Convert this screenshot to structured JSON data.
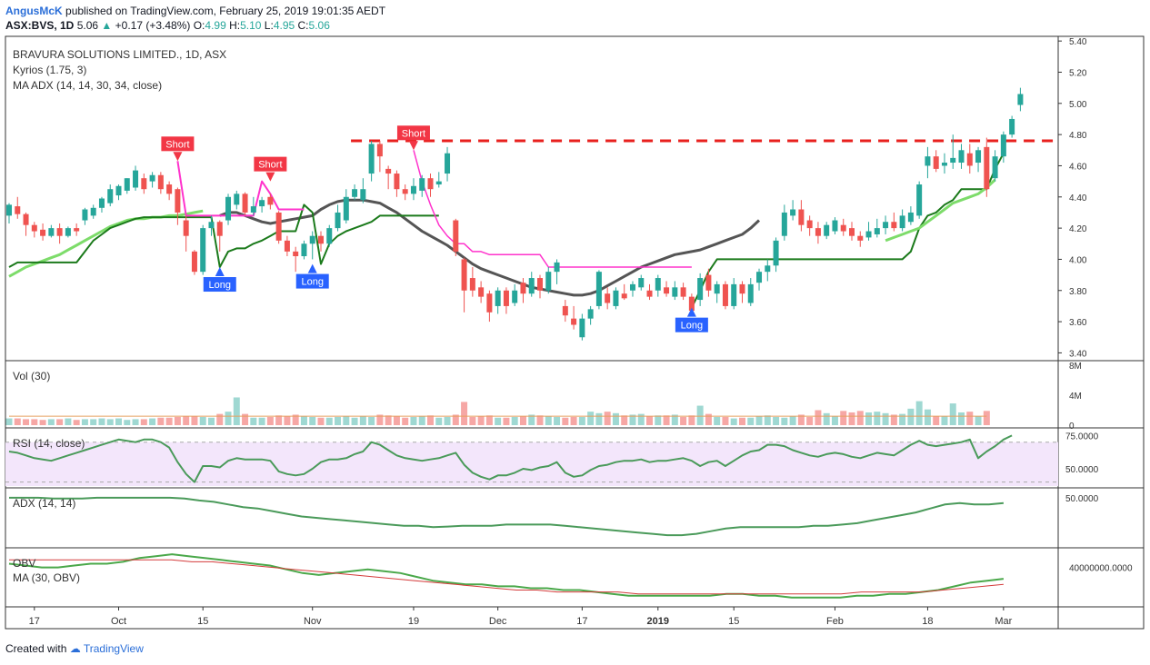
{
  "header": {
    "author": "AngusMcK",
    "published": "published on TradingView.com, February 25, 2019 19:01:35 AEDT",
    "symbol_line": "ASX:BVS, 1D",
    "last": "5.06",
    "change": "+0.17 (+3.48%)",
    "o_label": "O:",
    "o": "4.99",
    "h_label": "H:",
    "h": "5.10",
    "l_label": "L:",
    "l": "4.95",
    "c_label": "C:",
    "c": "5.06"
  },
  "overlays": {
    "title": "BRAVURA SOLUTIONS LIMITED., 1D, ASX",
    "kyrios": "Kyrios (1.75, 3)",
    "ma_adx": "MA ADX (14, 14, 30, 34, close)",
    "vol": "Vol (30)",
    "rsi": "RSI (14, close)",
    "adx": "ADX (14, 14)",
    "obv": "OBV",
    "ma_obv": "MA (30, OBV)"
  },
  "footer": {
    "created_with": "Created with",
    "brand": "TradingView"
  },
  "colors": {
    "bull": "#26a69a",
    "bear": "#ef5350",
    "kyrios_long": "#1b7a1b",
    "kyrios_short": "#ff33cc",
    "ma": "#555555",
    "signal_line": "#7ddc6a",
    "resistance": "#e8201e",
    "rsi_band": "#f3e6fb",
    "rsi_line": "#4a9a5a",
    "adx_line": "#4a9a5a",
    "obv_line": "#4aa84a",
    "obv_ma": "#d43b3b"
  },
  "chart_data": {
    "type": "candlestick",
    "price_axis": {
      "ticks": [
        "5.40",
        "5.20",
        "5.00",
        "4.80",
        "4.60",
        "4.40",
        "4.20",
        "4.00",
        "3.80",
        "3.60",
        "3.40"
      ],
      "range": [
        3.35,
        5.43
      ]
    },
    "volume_axis": {
      "ticks": [
        "8M",
        "4M",
        "0"
      ],
      "range": [
        0,
        8
      ]
    },
    "rsi_axis": {
      "ticks": [
        "75.0000",
        "50.0000"
      ],
      "range": [
        37,
        78
      ]
    },
    "adx_axis": {
      "ticks": [
        "50.0000"
      ]
    },
    "obv_axis": {
      "ticks": [
        "40000000.0000"
      ]
    },
    "x_ticks": [
      {
        "label": "17",
        "bar": 3
      },
      {
        "label": "Oct",
        "bar": 13
      },
      {
        "label": "15",
        "bar": 23
      },
      {
        "label": "Nov",
        "bar": 36
      },
      {
        "label": "19",
        "bar": 48
      },
      {
        "label": "Dec",
        "bar": 58
      },
      {
        "label": "17",
        "bar": 68
      },
      {
        "label": "2019",
        "bar": 77,
        "bold": true
      },
      {
        "label": "15",
        "bar": 86
      },
      {
        "label": "Feb",
        "bar": 98
      },
      {
        "label": "18",
        "bar": 109
      },
      {
        "label": "Mar",
        "bar": 118
      }
    ],
    "resistance_level": 4.76,
    "resistance_from_bar": 41,
    "signals": [
      {
        "type": "Short",
        "bar": 20,
        "price": 4.63
      },
      {
        "type": "Long",
        "bar": 25,
        "price": 3.95
      },
      {
        "type": "Short",
        "bar": 31,
        "price": 4.5
      },
      {
        "type": "Long",
        "bar": 36,
        "price": 3.97
      },
      {
        "type": "Short",
        "bar": 48,
        "price": 4.7
      },
      {
        "type": "Long",
        "bar": 81,
        "price": 3.69
      }
    ],
    "candles": [
      [
        4.28,
        4.35,
        4.36,
        4.23
      ],
      [
        4.34,
        4.29,
        4.4,
        4.26
      ],
      [
        4.29,
        4.22,
        4.3,
        4.15
      ],
      [
        4.22,
        4.18,
        4.24,
        4.14
      ],
      [
        4.19,
        4.15,
        4.23,
        4.12
      ],
      [
        4.15,
        4.2,
        4.22,
        4.14
      ],
      [
        4.2,
        4.15,
        4.23,
        4.1
      ],
      [
        4.15,
        4.2,
        4.21,
        4.14
      ],
      [
        4.2,
        4.18,
        4.23,
        4.15
      ],
      [
        4.25,
        4.32,
        4.33,
        4.22
      ],
      [
        4.28,
        4.33,
        4.35,
        4.26
      ],
      [
        4.33,
        4.39,
        4.4,
        4.3
      ],
      [
        4.36,
        4.45,
        4.48,
        4.34
      ],
      [
        4.41,
        4.47,
        4.48,
        4.38
      ],
      [
        4.44,
        4.52,
        4.52,
        4.42
      ],
      [
        4.46,
        4.57,
        4.6,
        4.44
      ],
      [
        4.52,
        4.45,
        4.55,
        4.42
      ],
      [
        4.5,
        4.54,
        4.56,
        4.46
      ],
      [
        4.54,
        4.45,
        4.56,
        4.42
      ],
      [
        4.48,
        4.42,
        4.5,
        4.38
      ],
      [
        4.45,
        4.3,
        4.46,
        4.22
      ],
      [
        4.25,
        4.15,
        4.28,
        4.05
      ],
      [
        4.05,
        3.92,
        4.06,
        3.9
      ],
      [
        3.92,
        4.2,
        4.22,
        3.9
      ],
      [
        4.2,
        4.24,
        4.28,
        4.15
      ],
      [
        4.24,
        4.15,
        4.25,
        4.05
      ],
      [
        4.25,
        4.4,
        4.42,
        4.22
      ],
      [
        4.35,
        4.42,
        4.44,
        4.32
      ],
      [
        4.42,
        4.3,
        4.43,
        4.28
      ],
      [
        4.3,
        4.34,
        4.4,
        4.28
      ],
      [
        4.34,
        4.38,
        4.4,
        4.3
      ],
      [
        4.4,
        4.35,
        4.42,
        4.32
      ],
      [
        4.3,
        4.12,
        4.31,
        4.1
      ],
      [
        4.12,
        4.05,
        4.15,
        4.02
      ],
      [
        4.05,
        4.02,
        4.08,
        3.92
      ],
      [
        4.02,
        4.1,
        4.12,
        4.0
      ],
      [
        4.1,
        4.15,
        4.18,
        4.0
      ],
      [
        4.15,
        4.1,
        4.18,
        4.05
      ],
      [
        4.1,
        4.2,
        4.22,
        4.08
      ],
      [
        4.2,
        4.3,
        4.35,
        4.18
      ],
      [
        4.25,
        4.4,
        4.45,
        4.23
      ],
      [
        4.4,
        4.45,
        4.48,
        4.38
      ],
      [
        4.38,
        4.45,
        4.52,
        4.36
      ],
      [
        4.55,
        4.74,
        4.76,
        4.5
      ],
      [
        4.74,
        4.66,
        4.76,
        4.56
      ],
      [
        4.58,
        4.55,
        4.6,
        4.45
      ],
      [
        4.55,
        4.45,
        4.57,
        4.4
      ],
      [
        4.45,
        4.42,
        4.48,
        4.38
      ],
      [
        4.42,
        4.47,
        4.52,
        4.38
      ],
      [
        4.44,
        4.52,
        4.54,
        4.4
      ],
      [
        4.52,
        4.45,
        4.55,
        4.4
      ],
      [
        4.48,
        4.5,
        4.56,
        4.46
      ],
      [
        4.55,
        4.68,
        4.72,
        4.5
      ],
      [
        4.25,
        4.05,
        4.26,
        4.02
      ],
      [
        4.0,
        3.8,
        4.01,
        3.66
      ],
      [
        3.88,
        3.8,
        3.95,
        3.76
      ],
      [
        3.82,
        3.76,
        3.86,
        3.72
      ],
      [
        3.78,
        3.66,
        3.8,
        3.6
      ],
      [
        3.7,
        3.8,
        3.82,
        3.65
      ],
      [
        3.8,
        3.7,
        3.82,
        3.65
      ],
      [
        3.72,
        3.8,
        3.84,
        3.7
      ],
      [
        3.85,
        3.78,
        3.88,
        3.72
      ],
      [
        3.78,
        3.88,
        3.92,
        3.76
      ],
      [
        3.88,
        3.8,
        3.9,
        3.75
      ],
      [
        3.8,
        3.92,
        3.95,
        3.78
      ],
      [
        3.92,
        3.98,
        4.0,
        3.84
      ],
      [
        3.7,
        3.64,
        3.74,
        3.6
      ],
      [
        3.62,
        3.58,
        3.7,
        3.55
      ],
      [
        3.5,
        3.62,
        3.65,
        3.48
      ],
      [
        3.62,
        3.68,
        3.7,
        3.58
      ],
      [
        3.7,
        3.92,
        3.93,
        3.68
      ],
      [
        3.78,
        3.72,
        3.82,
        3.68
      ],
      [
        3.7,
        3.8,
        3.82,
        3.68
      ],
      [
        3.78,
        3.75,
        3.84,
        3.74
      ],
      [
        3.8,
        3.84,
        3.86,
        3.76
      ],
      [
        3.82,
        3.88,
        3.9,
        3.8
      ],
      [
        3.8,
        3.76,
        3.84,
        3.74
      ],
      [
        3.8,
        3.88,
        3.9,
        3.76
      ],
      [
        3.82,
        3.78,
        3.86,
        3.76
      ],
      [
        3.76,
        3.82,
        3.86,
        3.74
      ],
      [
        3.82,
        3.76,
        3.85,
        3.74
      ],
      [
        3.76,
        3.67,
        3.78,
        3.66
      ],
      [
        3.74,
        3.88,
        3.91,
        3.7
      ],
      [
        3.9,
        3.8,
        3.94,
        3.76
      ],
      [
        3.78,
        3.84,
        3.86,
        3.72
      ],
      [
        3.84,
        3.7,
        3.86,
        3.68
      ],
      [
        3.7,
        3.84,
        3.88,
        3.68
      ],
      [
        3.84,
        3.78,
        3.86,
        3.72
      ],
      [
        3.72,
        3.84,
        3.88,
        3.7
      ],
      [
        3.85,
        3.92,
        3.94,
        3.8
      ],
      [
        3.92,
        3.96,
        4.0,
        3.86
      ],
      [
        3.96,
        4.12,
        4.14,
        3.92
      ],
      [
        4.15,
        4.3,
        4.35,
        4.12
      ],
      [
        4.28,
        4.32,
        4.38,
        4.25
      ],
      [
        4.32,
        4.22,
        4.38,
        4.18
      ],
      [
        4.25,
        4.2,
        4.28,
        4.15
      ],
      [
        4.2,
        4.15,
        4.24,
        4.1
      ],
      [
        4.15,
        4.22,
        4.24,
        4.13
      ],
      [
        4.18,
        4.25,
        4.27,
        4.16
      ],
      [
        4.22,
        4.18,
        4.26,
        4.15
      ],
      [
        4.2,
        4.15,
        4.24,
        4.12
      ],
      [
        4.15,
        4.12,
        4.18,
        4.08
      ],
      [
        4.14,
        4.18,
        4.24,
        4.12
      ],
      [
        4.16,
        4.2,
        4.26,
        4.14
      ],
      [
        4.2,
        4.24,
        4.28,
        4.16
      ],
      [
        4.24,
        4.2,
        4.3,
        4.18
      ],
      [
        4.2,
        4.28,
        4.32,
        4.18
      ],
      [
        4.24,
        4.3,
        4.34,
        4.22
      ],
      [
        4.28,
        4.48,
        4.5,
        4.26
      ],
      [
        4.6,
        4.66,
        4.72,
        4.52
      ],
      [
        4.66,
        4.58,
        4.7,
        4.56
      ],
      [
        4.6,
        4.62,
        4.68,
        4.55
      ],
      [
        4.62,
        4.65,
        4.8,
        4.58
      ],
      [
        4.62,
        4.7,
        4.74,
        4.58
      ],
      [
        4.68,
        4.6,
        4.74,
        4.55
      ],
      [
        4.62,
        4.7,
        4.72,
        4.56
      ],
      [
        4.72,
        4.45,
        4.78,
        4.4
      ],
      [
        4.52,
        4.66,
        4.7,
        4.5
      ],
      [
        4.66,
        4.8,
        4.82,
        4.62
      ],
      [
        4.8,
        4.9,
        4.92,
        4.78
      ],
      [
        4.99,
        5.06,
        5.1,
        4.95
      ]
    ],
    "volume": [
      0.9,
      0.9,
      0.8,
      0.8,
      0.7,
      0.8,
      0.8,
      0.9,
      0.7,
      0.8,
      0.8,
      0.9,
      0.8,
      0.9,
      0.7,
      0.8,
      0.8,
      0.9,
      1.0,
      1.0,
      1.1,
      1.2,
      1.2,
      1.1,
      1.0,
      1.5,
      1.8,
      3.7,
      1.5,
      1.0,
      1.0,
      1.1,
      1.3,
      1.2,
      1.4,
      1.2,
      1.1,
      1.0,
      1.0,
      1.1,
      1.2,
      1.0,
      1.2,
      1.1,
      1.4,
      1.3,
      1.2,
      1.0,
      1.1,
      1.2,
      1.3,
      1.0,
      1.1,
      1.4,
      3.1,
      1.1,
      1.2,
      1.3,
      1.0,
      1.0,
      1.1,
      1.2,
      1.4,
      1.3,
      1.2,
      1.1,
      1.0,
      1.1,
      1.1,
      1.8,
      1.6,
      1.8,
      1.6,
      1.3,
      1.4,
      1.5,
      1.2,
      1.3,
      1.3,
      1.4,
      1.1,
      1.3,
      2.6,
      1.5,
      1.1,
      1.1,
      0.9,
      1.0,
      1.0,
      1.2,
      1.3,
      1.1,
      1.0,
      1.2,
      1.4,
      1.1,
      2.0,
      1.6,
      1.2,
      1.9,
      1.7,
      1.9,
      1.7,
      1.8,
      1.6,
      1.4,
      1.5,
      2.2,
      3.2,
      2.1,
      1.2,
      1.2,
      2.9,
      1.7,
      1.8,
      1.2,
      1.9
    ],
    "indicator_series": {
      "kyrios_green": [
        3.95,
        3.98,
        3.98,
        3.98,
        3.98,
        3.98,
        3.98,
        3.98,
        3.98,
        4.05,
        4.12,
        4.16,
        4.2,
        4.22,
        4.24,
        4.26,
        4.27,
        4.27,
        4.27,
        4.27,
        4.27,
        4.27,
        4.27,
        4.27,
        4.27,
        3.95,
        4.05,
        4.07,
        4.07,
        4.1,
        4.12,
        4.15,
        4.18,
        4.18,
        4.18,
        4.35,
        4.3,
        3.97,
        4.1,
        4.15,
        4.18,
        4.2,
        4.22,
        4.24,
        4.28,
        4.28,
        4.28,
        4.28,
        4.28,
        4.28,
        4.28,
        4.28
      ],
      "kyrios_pink": [
        4.63,
        4.28,
        4.28,
        4.28,
        4.28,
        4.28,
        4.28,
        4.28,
        4.28,
        4.28,
        4.5,
        4.42,
        4.32,
        4.32,
        4.32,
        4.32
      ],
      "pink2": [
        4.7,
        4.5,
        4.35,
        4.22,
        4.15,
        4.1,
        4.1,
        4.05,
        4.05,
        4.03,
        4.03,
        4.03,
        4.03,
        4.03,
        4.03,
        4.03,
        3.95,
        3.95,
        3.95,
        3.95,
        3.95,
        3.95,
        3.95,
        3.95,
        3.95,
        3.95,
        3.95,
        3.95,
        3.95,
        3.95,
        3.95,
        3.95,
        3.95,
        3.95
      ],
      "green2": [
        3.69,
        3.8,
        3.92,
        4.0,
        4.0,
        4.0,
        4.0,
        4.0,
        4.0,
        4.0,
        4.0,
        4.0,
        4.0,
        4.0,
        4.0,
        4.0,
        4.0,
        4.0,
        4.0,
        4.0,
        4.0,
        4.0,
        4.0,
        4.0,
        4.0,
        4.0,
        4.05,
        4.2,
        4.28,
        4.3,
        4.35,
        4.38,
        4.45,
        4.45,
        4.45,
        4.45,
        4.58,
        4.68
      ],
      "ma_dark": [
        4.28,
        4.3,
        4.3,
        4.28,
        4.26,
        4.24,
        4.23,
        4.24,
        4.25,
        4.26,
        4.27,
        4.28,
        4.32,
        4.35,
        4.37,
        4.38,
        4.38,
        4.38,
        4.37,
        4.36,
        4.33,
        4.3,
        4.26,
        4.22,
        4.18,
        4.15,
        4.12,
        4.09,
        4.05,
        4.01,
        3.97,
        3.94,
        3.92,
        3.9,
        3.88,
        3.86,
        3.84,
        3.82,
        3.81,
        3.8,
        3.79,
        3.78,
        3.77,
        3.77,
        3.78,
        3.8,
        3.83,
        3.86,
        3.89,
        3.92,
        3.95,
        3.97,
        3.99,
        4.01,
        4.03,
        4.04,
        4.05,
        4.06,
        4.08,
        4.1,
        4.12,
        4.14,
        4.16,
        4.2,
        4.25
      ],
      "light_green": [
        3.89,
        3.92,
        3.95,
        3.97,
        3.99,
        4.01,
        4.03,
        4.06,
        4.09,
        4.12,
        4.15,
        4.18,
        4.21,
        4.23,
        4.25,
        4.26,
        4.26,
        4.27,
        4.27,
        4.28,
        4.28,
        4.29,
        4.3,
        4.31
      ]
    },
    "rsi": [
      63,
      62,
      60,
      58,
      57,
      56,
      58,
      60,
      62,
      64,
      66,
      68,
      70,
      72,
      71,
      70,
      72,
      72,
      70,
      66,
      55,
      46,
      40,
      52,
      52,
      51,
      56,
      58,
      57,
      57,
      57,
      56,
      48,
      46,
      45,
      46,
      50,
      55,
      57,
      57,
      58,
      61,
      63,
      70,
      68,
      64,
      60,
      58,
      57,
      56,
      57,
      58,
      60,
      62,
      53,
      47,
      44,
      42,
      45,
      45,
      47,
      50,
      49,
      51,
      52,
      55,
      47,
      44,
      45,
      49,
      52,
      53,
      55,
      56,
      56,
      57,
      55,
      56,
      56,
      57,
      58,
      56,
      52,
      55,
      56,
      52,
      56,
      60,
      63,
      64,
      68,
      68,
      67,
      64,
      62,
      60,
      59,
      61,
      62,
      61,
      59,
      58,
      60,
      62,
      61,
      60,
      64,
      68,
      71,
      68,
      67,
      68,
      69,
      70,
      72,
      58,
      63,
      67,
      72,
      75
    ],
    "adx": [
      50,
      50,
      50,
      49.5,
      49.5,
      49.5,
      50,
      50,
      50,
      50,
      50,
      50,
      49.5,
      48,
      47,
      45,
      43,
      42,
      40,
      38,
      36,
      35,
      34,
      33,
      32,
      31,
      30,
      29,
      29,
      28,
      28.5,
      29,
      29,
      29,
      30,
      30,
      30,
      30,
      29,
      28,
      27,
      26,
      25,
      24,
      23,
      22,
      22,
      23,
      25,
      27,
      28,
      28,
      28,
      28,
      28,
      29,
      29,
      30,
      31,
      33,
      35,
      37,
      39,
      42,
      45,
      46,
      45,
      45,
      46
    ],
    "obv": [
      42,
      41,
      40,
      40,
      41,
      42,
      42,
      43,
      45,
      46,
      47,
      46,
      45,
      44,
      43,
      42,
      41,
      39,
      37,
      36,
      37,
      38,
      39,
      38,
      37,
      35,
      33,
      32,
      31,
      31,
      30,
      30,
      29,
      29,
      28,
      28,
      27,
      26,
      25,
      25,
      25,
      25,
      25,
      25,
      26,
      26,
      25,
      25,
      24,
      24,
      24,
      24,
      25,
      25,
      26,
      26,
      27,
      28,
      30,
      32,
      33,
      34
    ],
    "obv_ma": [
      44,
      44,
      44,
      44,
      44,
      44,
      44,
      44,
      44,
      43,
      43,
      42,
      41,
      40,
      39,
      38,
      37,
      36,
      35,
      34,
      33,
      32,
      31,
      30,
      29,
      28,
      28,
      27,
      27,
      27,
      27,
      26,
      26,
      26,
      26,
      26,
      26,
      26,
      26,
      26,
      26,
      26,
      27,
      27,
      27,
      27,
      28,
      29,
      30,
      31
    ]
  }
}
